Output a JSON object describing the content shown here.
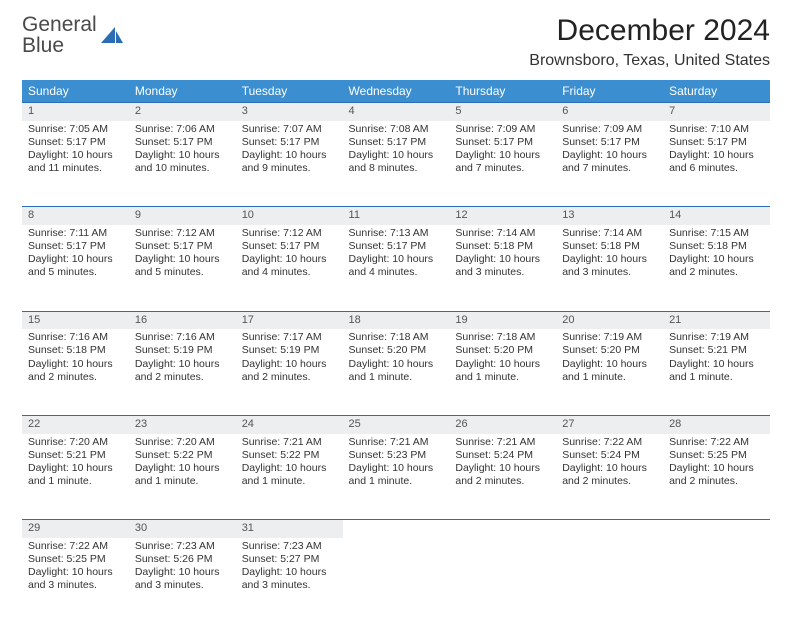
{
  "logo": {
    "line1": "General",
    "line2": "Blue"
  },
  "title": "December 2024",
  "location": "Brownsboro, Texas, United States",
  "colors": {
    "header_bg": "#3b8ecf",
    "header_text": "#ffffff",
    "daynum_bg": "#eceeef",
    "row_border": "#2a6db6",
    "body_text": "#333333",
    "logo_blue": "#2a6db6"
  },
  "weekdays": [
    "Sunday",
    "Monday",
    "Tuesday",
    "Wednesday",
    "Thursday",
    "Friday",
    "Saturday"
  ],
  "weeks": [
    [
      {
        "n": "1",
        "sr": "7:05 AM",
        "ss": "5:17 PM",
        "dl": "10 hours and 11 minutes."
      },
      {
        "n": "2",
        "sr": "7:06 AM",
        "ss": "5:17 PM",
        "dl": "10 hours and 10 minutes."
      },
      {
        "n": "3",
        "sr": "7:07 AM",
        "ss": "5:17 PM",
        "dl": "10 hours and 9 minutes."
      },
      {
        "n": "4",
        "sr": "7:08 AM",
        "ss": "5:17 PM",
        "dl": "10 hours and 8 minutes."
      },
      {
        "n": "5",
        "sr": "7:09 AM",
        "ss": "5:17 PM",
        "dl": "10 hours and 7 minutes."
      },
      {
        "n": "6",
        "sr": "7:09 AM",
        "ss": "5:17 PM",
        "dl": "10 hours and 7 minutes."
      },
      {
        "n": "7",
        "sr": "7:10 AM",
        "ss": "5:17 PM",
        "dl": "10 hours and 6 minutes."
      }
    ],
    [
      {
        "n": "8",
        "sr": "7:11 AM",
        "ss": "5:17 PM",
        "dl": "10 hours and 5 minutes."
      },
      {
        "n": "9",
        "sr": "7:12 AM",
        "ss": "5:17 PM",
        "dl": "10 hours and 5 minutes."
      },
      {
        "n": "10",
        "sr": "7:12 AM",
        "ss": "5:17 PM",
        "dl": "10 hours and 4 minutes."
      },
      {
        "n": "11",
        "sr": "7:13 AM",
        "ss": "5:17 PM",
        "dl": "10 hours and 4 minutes."
      },
      {
        "n": "12",
        "sr": "7:14 AM",
        "ss": "5:18 PM",
        "dl": "10 hours and 3 minutes."
      },
      {
        "n": "13",
        "sr": "7:14 AM",
        "ss": "5:18 PM",
        "dl": "10 hours and 3 minutes."
      },
      {
        "n": "14",
        "sr": "7:15 AM",
        "ss": "5:18 PM",
        "dl": "10 hours and 2 minutes."
      }
    ],
    [
      {
        "n": "15",
        "sr": "7:16 AM",
        "ss": "5:18 PM",
        "dl": "10 hours and 2 minutes."
      },
      {
        "n": "16",
        "sr": "7:16 AM",
        "ss": "5:19 PM",
        "dl": "10 hours and 2 minutes."
      },
      {
        "n": "17",
        "sr": "7:17 AM",
        "ss": "5:19 PM",
        "dl": "10 hours and 2 minutes."
      },
      {
        "n": "18",
        "sr": "7:18 AM",
        "ss": "5:20 PM",
        "dl": "10 hours and 1 minute."
      },
      {
        "n": "19",
        "sr": "7:18 AM",
        "ss": "5:20 PM",
        "dl": "10 hours and 1 minute."
      },
      {
        "n": "20",
        "sr": "7:19 AM",
        "ss": "5:20 PM",
        "dl": "10 hours and 1 minute."
      },
      {
        "n": "21",
        "sr": "7:19 AM",
        "ss": "5:21 PM",
        "dl": "10 hours and 1 minute."
      }
    ],
    [
      {
        "n": "22",
        "sr": "7:20 AM",
        "ss": "5:21 PM",
        "dl": "10 hours and 1 minute."
      },
      {
        "n": "23",
        "sr": "7:20 AM",
        "ss": "5:22 PM",
        "dl": "10 hours and 1 minute."
      },
      {
        "n": "24",
        "sr": "7:21 AM",
        "ss": "5:22 PM",
        "dl": "10 hours and 1 minute."
      },
      {
        "n": "25",
        "sr": "7:21 AM",
        "ss": "5:23 PM",
        "dl": "10 hours and 1 minute."
      },
      {
        "n": "26",
        "sr": "7:21 AM",
        "ss": "5:24 PM",
        "dl": "10 hours and 2 minutes."
      },
      {
        "n": "27",
        "sr": "7:22 AM",
        "ss": "5:24 PM",
        "dl": "10 hours and 2 minutes."
      },
      {
        "n": "28",
        "sr": "7:22 AM",
        "ss": "5:25 PM",
        "dl": "10 hours and 2 minutes."
      }
    ],
    [
      {
        "n": "29",
        "sr": "7:22 AM",
        "ss": "5:25 PM",
        "dl": "10 hours and 3 minutes."
      },
      {
        "n": "30",
        "sr": "7:23 AM",
        "ss": "5:26 PM",
        "dl": "10 hours and 3 minutes."
      },
      {
        "n": "31",
        "sr": "7:23 AM",
        "ss": "5:27 PM",
        "dl": "10 hours and 3 minutes."
      },
      null,
      null,
      null,
      null
    ]
  ],
  "labels": {
    "sunrise": "Sunrise:",
    "sunset": "Sunset:",
    "daylight": "Daylight:"
  }
}
